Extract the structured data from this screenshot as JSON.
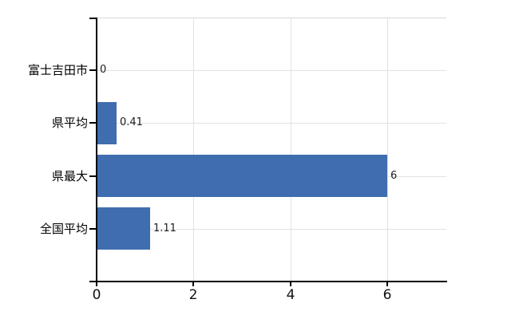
{
  "chart_data": {
    "type": "bar",
    "orientation": "horizontal",
    "title": "",
    "categories": [
      "富士吉田市",
      "県平均",
      "県最大",
      "全国平均"
    ],
    "values": [
      0,
      0.41,
      6,
      1.11
    ],
    "value_labels": [
      "0",
      "0.41",
      "6",
      "1.11"
    ],
    "x_ticks": [
      {
        "value": 0,
        "label": "0"
      },
      {
        "value": 2,
        "label": "2"
      },
      {
        "value": 4,
        "label": "4"
      },
      {
        "value": 6,
        "label": "6"
      }
    ],
    "xlim": [
      0,
      7.21
    ],
    "grid": true,
    "legend": false,
    "colors": {
      "bar": "#3f6db0",
      "axis": "#000000",
      "gridline": "#e2e2e2",
      "plot_border": "#d8d8d8",
      "text": "#1c1c1c",
      "background": "#ffffff"
    }
  }
}
